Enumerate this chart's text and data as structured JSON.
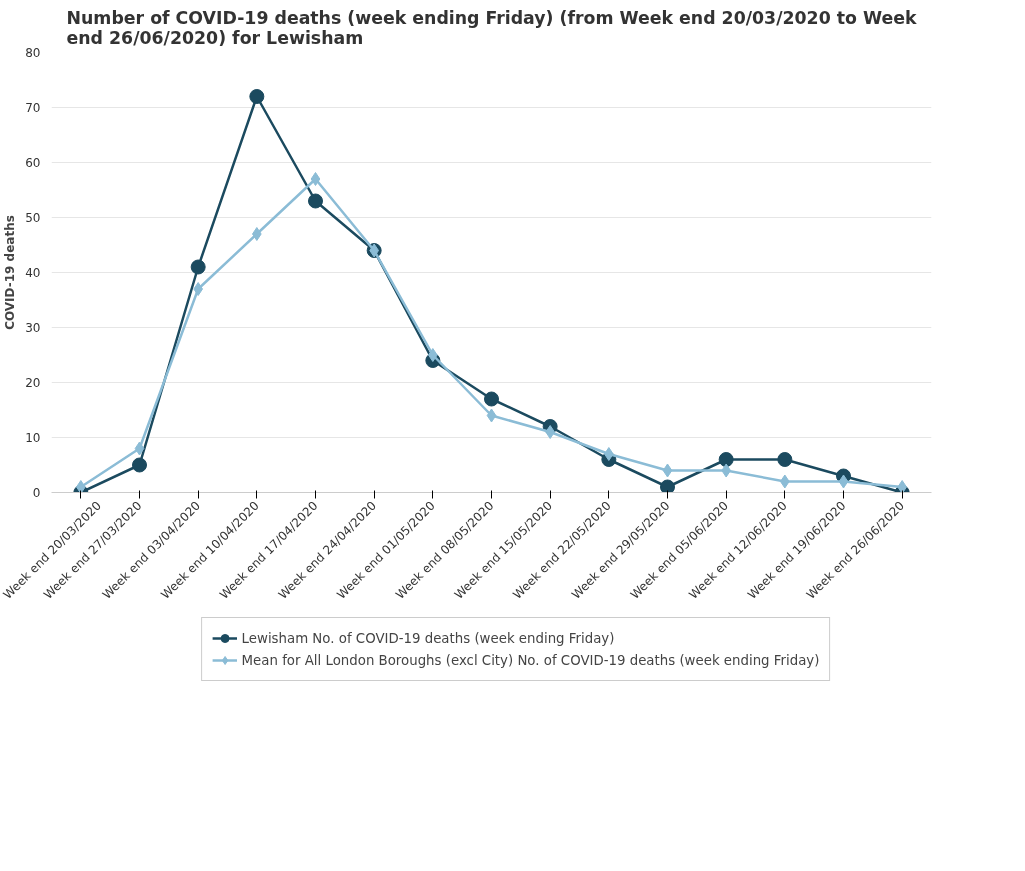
{
  "chart_data": {
    "type": "line",
    "title": "Number of COVID-19 deaths (week ending Friday) (from Week end 20/03/2020 to Week end 26/06/2020) for Lewisham",
    "ylabel": "COVID-19 deaths",
    "categories": [
      "Week end 20/03/2020",
      "Week end 27/03/2020",
      "Week end 03/04/2020",
      "Week end 10/04/2020",
      "Week end 17/04/2020",
      "Week end 24/04/2020",
      "Week end 01/05/2020",
      "Week end 08/05/2020",
      "Week end 15/05/2020",
      "Week end 22/05/2020",
      "Week end 29/05/2020",
      "Week end 05/06/2020",
      "Week end 12/06/2020",
      "Week end 19/06/2020",
      "Week end 26/06/2020"
    ],
    "series": [
      {
        "name": "Lewisham No. of COVID-19 deaths (week ending Friday)",
        "color": "#1b4a5f",
        "marker": "circle",
        "values": [
          0,
          5,
          41,
          72,
          53,
          44,
          24,
          17,
          12,
          6,
          1,
          6,
          6,
          3,
          0
        ]
      },
      {
        "name": "Mean for All London Boroughs (excl City) No. of COVID-19 deaths (week ending Friday)",
        "color": "#8bbcd6",
        "marker": "diamond",
        "values": [
          1,
          8,
          37,
          47,
          57,
          44,
          25,
          14,
          11,
          7,
          4,
          4,
          2,
          2,
          1
        ]
      }
    ],
    "ylim": [
      0,
      80
    ],
    "yticks": [
      0,
      10,
      20,
      30,
      40,
      50,
      60,
      70,
      80
    ],
    "grid": "y",
    "legend": "bottom",
    "line_style": "solid"
  }
}
